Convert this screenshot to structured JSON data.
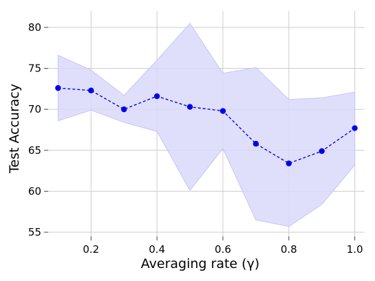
{
  "chart_data": {
    "type": "line",
    "xlabel": "Averaging rate (γ)",
    "ylabel": "Test Accuracy",
    "xlim": [
      0.07,
      1.03
    ],
    "ylim": [
      54.5,
      82
    ],
    "x_ticks": [
      0.2,
      0.4,
      0.6,
      0.8,
      1.0
    ],
    "x_tick_labels": [
      "0.2",
      "0.4",
      "0.6",
      "0.8",
      "1.0"
    ],
    "y_ticks": [
      55,
      60,
      65,
      70,
      75,
      80
    ],
    "y_tick_labels": [
      "55",
      "60",
      "65",
      "70",
      "75",
      "80"
    ],
    "grid": true,
    "line_color": "#0000ee",
    "band_color": "#d9d9fb",
    "band_edge_color": "#c6c6f5",
    "x": [
      0.1,
      0.2,
      0.3,
      0.4,
      0.5,
      0.6,
      0.7,
      0.8,
      0.9,
      1.0
    ],
    "series": [
      {
        "values": [
          72.6,
          72.3,
          70.0,
          71.6,
          70.3,
          69.8,
          65.8,
          63.4,
          64.9,
          67.7
        ],
        "upper": [
          76.6,
          74.8,
          71.7,
          76.0,
          80.5,
          74.4,
          75.1,
          71.2,
          71.4,
          72.1
        ],
        "lower": [
          68.6,
          69.9,
          68.4,
          67.3,
          60.1,
          65.2,
          56.5,
          55.7,
          58.4,
          63.2
        ]
      }
    ]
  }
}
